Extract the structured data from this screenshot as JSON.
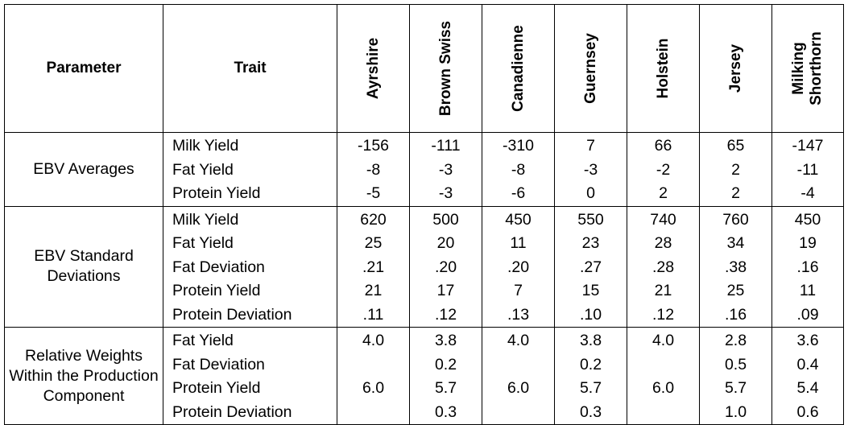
{
  "header": {
    "parameter": "Parameter",
    "trait": "Trait",
    "breeds": [
      "Ayrshire",
      "Brown Swiss",
      "Canadienne",
      "Guernsey",
      "Holstein",
      "Jersey",
      "Milking Shorthorn"
    ]
  },
  "groups": [
    {
      "parameter": "EBV Averages",
      "traits": [
        "Milk Yield",
        "Fat Yield",
        "Protein Yield"
      ],
      "values": [
        [
          "-156",
          "-8",
          "-5"
        ],
        [
          "-111",
          "-3",
          "-3"
        ],
        [
          "-310",
          "-8",
          "-6"
        ],
        [
          "7",
          "-3",
          "0"
        ],
        [
          "66",
          "-2",
          "2"
        ],
        [
          "65",
          "2",
          "2"
        ],
        [
          "-147",
          "-11",
          "-4"
        ]
      ]
    },
    {
      "parameter": "EBV Standard Deviations",
      "traits": [
        "Milk Yield",
        "Fat Yield",
        "Fat Deviation",
        "Protein Yield",
        "Protein Deviation"
      ],
      "values": [
        [
          "620",
          "25",
          ".21",
          "21",
          ".11"
        ],
        [
          "500",
          "20",
          ".20",
          "17",
          ".12"
        ],
        [
          "450",
          "11",
          ".20",
          "7",
          ".13"
        ],
        [
          "550",
          "23",
          ".27",
          "15",
          ".10"
        ],
        [
          "740",
          "28",
          ".28",
          "21",
          ".12"
        ],
        [
          "760",
          "34",
          ".38",
          "25",
          ".16"
        ],
        [
          "450",
          "19",
          ".16",
          "11",
          ".09"
        ]
      ]
    },
    {
      "parameter": "Relative Weights Within the Production Component",
      "traits": [
        "Fat Yield",
        "Fat Deviation",
        "Protein Yield",
        "Protein Deviation"
      ],
      "values": [
        [
          "4.0",
          "",
          "6.0",
          ""
        ],
        [
          "3.8",
          "0.2",
          "5.7",
          "0.3"
        ],
        [
          "4.0",
          "",
          "6.0",
          ""
        ],
        [
          "3.8",
          "0.2",
          "5.7",
          "0.3"
        ],
        [
          "4.0",
          "",
          "6.0",
          ""
        ],
        [
          "2.8",
          "0.5",
          "5.7",
          "1.0"
        ],
        [
          "3.6",
          "0.4",
          "5.4",
          "0.6"
        ]
      ]
    }
  ]
}
